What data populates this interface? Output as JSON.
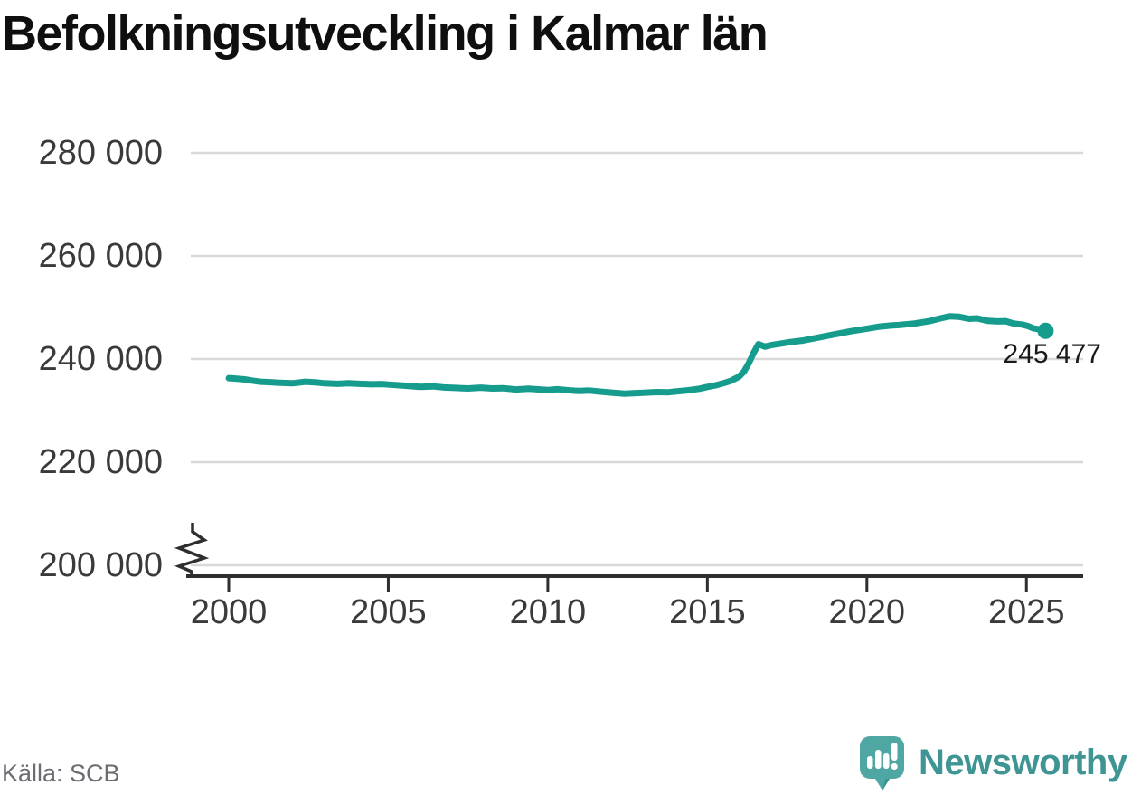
{
  "title": "Befolkningsutveckling i Kalmar län",
  "source_label": "Källa: SCB",
  "brand": {
    "name": "Newsworthy",
    "icon": "newsworthy-speech-bubble-bar-chart-icon",
    "text_color": "#3e9594",
    "icon_color": "#4ea7a2",
    "icon_shadow_color": "#3d938e"
  },
  "chart_data": {
    "type": "line",
    "title": "Befolkningsutveckling i Kalmar län",
    "xlabel": "",
    "ylabel": "",
    "grid": "horizontal-only",
    "y_axis_break": true,
    "xlim": [
      1998.8,
      2026.8
    ],
    "ylim": [
      200000,
      285000
    ],
    "x_ticks": [
      2000,
      2005,
      2010,
      2015,
      2020,
      2025
    ],
    "x_tick_labels": [
      "2000",
      "2005",
      "2010",
      "2015",
      "2020",
      "2025"
    ],
    "y_ticks": [
      200000,
      220000,
      240000,
      260000,
      280000
    ],
    "y_tick_labels": [
      "200 000",
      "220 000",
      "240 000",
      "260 000",
      "280 000"
    ],
    "grid_color": "#d8d8d8",
    "axis_color": "#2e2e2e",
    "last_value": 245477,
    "last_value_label": "245 477",
    "series": [
      {
        "name": "Kalmar län befolkning",
        "color": "#169c8d",
        "points": [
          [
            2000.0,
            236300
          ],
          [
            2000.25,
            236200
          ],
          [
            2000.5,
            236050
          ],
          [
            2000.75,
            235800
          ],
          [
            2001.0,
            235600
          ],
          [
            2001.3,
            235500
          ],
          [
            2001.6,
            235400
          ],
          [
            2002.0,
            235300
          ],
          [
            2002.4,
            235600
          ],
          [
            2002.75,
            235450
          ],
          [
            2003.0,
            235300
          ],
          [
            2003.4,
            235200
          ],
          [
            2003.75,
            235300
          ],
          [
            2004.1,
            235200
          ],
          [
            2004.5,
            235100
          ],
          [
            2004.8,
            235150
          ],
          [
            2005.0,
            235050
          ],
          [
            2005.5,
            234850
          ],
          [
            2006.0,
            234600
          ],
          [
            2006.4,
            234700
          ],
          [
            2006.75,
            234500
          ],
          [
            2007.1,
            234400
          ],
          [
            2007.5,
            234300
          ],
          [
            2007.9,
            234450
          ],
          [
            2008.25,
            234300
          ],
          [
            2008.6,
            234350
          ],
          [
            2009.0,
            234100
          ],
          [
            2009.4,
            234250
          ],
          [
            2009.75,
            234100
          ],
          [
            2010.0,
            234000
          ],
          [
            2010.3,
            234150
          ],
          [
            2010.75,
            233900
          ],
          [
            2011.0,
            233800
          ],
          [
            2011.3,
            233900
          ],
          [
            2011.6,
            233700
          ],
          [
            2012.0,
            233500
          ],
          [
            2012.4,
            233300
          ],
          [
            2012.75,
            233400
          ],
          [
            2013.0,
            233450
          ],
          [
            2013.4,
            233600
          ],
          [
            2013.75,
            233550
          ],
          [
            2014.0,
            233700
          ],
          [
            2014.4,
            233950
          ],
          [
            2014.75,
            234250
          ],
          [
            2015.0,
            234600
          ],
          [
            2015.25,
            234900
          ],
          [
            2015.5,
            235300
          ],
          [
            2015.75,
            235800
          ],
          [
            2016.0,
            236600
          ],
          [
            2016.15,
            237600
          ],
          [
            2016.3,
            239200
          ],
          [
            2016.45,
            241200
          ],
          [
            2016.6,
            242900
          ],
          [
            2016.8,
            242400
          ],
          [
            2017.0,
            242700
          ],
          [
            2017.3,
            243000
          ],
          [
            2017.6,
            243300
          ],
          [
            2018.0,
            243600
          ],
          [
            2018.5,
            244200
          ],
          [
            2019.0,
            244800
          ],
          [
            2019.5,
            245400
          ],
          [
            2020.0,
            245900
          ],
          [
            2020.4,
            246300
          ],
          [
            2020.75,
            246500
          ],
          [
            2021.0,
            246600
          ],
          [
            2021.5,
            246900
          ],
          [
            2022.0,
            247400
          ],
          [
            2022.3,
            247900
          ],
          [
            2022.6,
            248300
          ],
          [
            2022.9,
            248200
          ],
          [
            2023.2,
            247800
          ],
          [
            2023.45,
            247900
          ],
          [
            2023.8,
            247400
          ],
          [
            2024.1,
            247300
          ],
          [
            2024.35,
            247350
          ],
          [
            2024.6,
            246900
          ],
          [
            2024.85,
            246700
          ],
          [
            2025.05,
            246400
          ],
          [
            2025.2,
            246000
          ],
          [
            2025.4,
            245750
          ],
          [
            2025.6,
            245477
          ]
        ]
      }
    ]
  }
}
